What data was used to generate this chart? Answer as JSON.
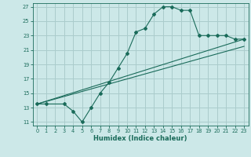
{
  "xlabel": "Humidex (Indice chaleur)",
  "bg_color": "#cce8e8",
  "grid_color": "#aacccc",
  "line_color": "#1a6b5a",
  "xlim": [
    -0.5,
    23.5
  ],
  "ylim": [
    10.5,
    27.5
  ],
  "xticks": [
    0,
    1,
    2,
    3,
    4,
    5,
    6,
    7,
    8,
    9,
    10,
    11,
    12,
    13,
    14,
    15,
    16,
    17,
    18,
    19,
    20,
    21,
    22,
    23
  ],
  "yticks": [
    11,
    13,
    15,
    17,
    19,
    21,
    23,
    25,
    27
  ],
  "line1_x": [
    0,
    1,
    3,
    4,
    5,
    6,
    7,
    8,
    9,
    10,
    11,
    12,
    13,
    14,
    15,
    16,
    17,
    18,
    19,
    20,
    21,
    22,
    23
  ],
  "line1_y": [
    13.5,
    13.5,
    13.5,
    12.5,
    11.0,
    13.0,
    15.0,
    16.5,
    18.5,
    20.5,
    23.5,
    24.0,
    26.0,
    27.0,
    27.0,
    26.5,
    26.5,
    23.0,
    23.0,
    23.0,
    23.0,
    22.5,
    22.5
  ],
  "line2_x": [
    0,
    23
  ],
  "line2_y": [
    13.5,
    22.5
  ],
  "line3_x": [
    0,
    23
  ],
  "line3_y": [
    13.5,
    21.5
  ],
  "xlabel_fontsize": 6.0,
  "tick_fontsize": 4.8
}
